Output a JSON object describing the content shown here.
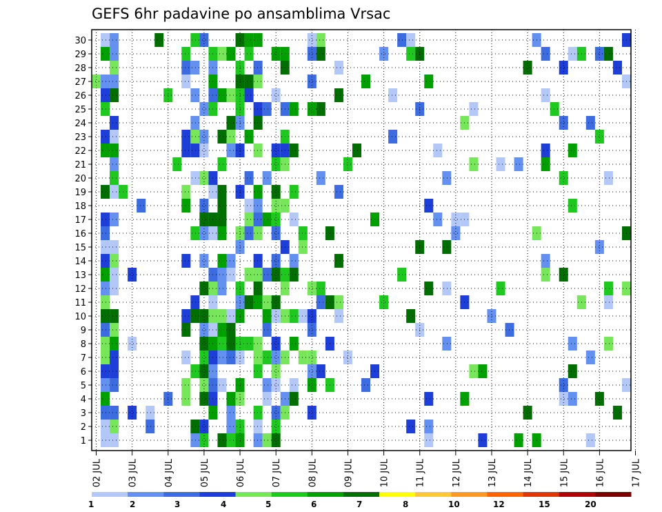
{
  "chart_data": {
    "type": "heatmap",
    "title": "GEFS 6hr padavine po ansamblima Vrsac",
    "x_tick_labels": [
      "02 JUL",
      "03 JUL",
      "04 JUL",
      "05 JUL",
      "06 JUL",
      "07 JUL",
      "08 JUL",
      "09 JUL",
      "10 JUL",
      "11 JUL",
      "12 JUL",
      "13 JUL",
      "14 JUL",
      "15 JUL",
      "16 JUL",
      "17 JUL"
    ],
    "y_tick_labels": [
      "1",
      "2",
      "3",
      "4",
      "5",
      "6",
      "7",
      "8",
      "9",
      "10",
      "11",
      "12",
      "13",
      "14",
      "15",
      "16",
      "17",
      "18",
      "19",
      "20",
      "21",
      "22",
      "23",
      "24",
      "25",
      "26",
      "27",
      "28",
      "29",
      "30"
    ],
    "x_steps_per_day": 4,
    "n_steps": 60,
    "n_members": 30,
    "grid": "dotted",
    "colorbar_labels": [
      "1",
      "2",
      "3",
      "4",
      "5",
      "6",
      "7",
      "8",
      "10",
      "12",
      "15",
      "20"
    ],
    "colorbar_colors": [
      "#b4c8f8",
      "#6490f0",
      "#3c6ce0",
      "#1e3ed8",
      "#78e65a",
      "#1ec81e",
      "#00a000",
      "#006e00",
      "#ffff00",
      "#ffc83c",
      "#ff9628",
      "#ff6400",
      "#e63200",
      "#b40000",
      "#780000"
    ],
    "cells": [
      [
        0,
        1,
        1
      ],
      [
        1,
        1,
        1
      ],
      [
        2,
        1,
        1
      ],
      [
        2,
        2,
        4
      ],
      [
        3,
        1,
        2
      ],
      [
        4,
        1,
        1
      ],
      [
        5,
        1,
        3
      ],
      [
        6,
        1,
        2
      ],
      [
        7,
        1,
        2
      ],
      [
        8,
        2,
        4
      ],
      [
        9,
        1,
        2
      ],
      [
        10,
        2,
        2
      ],
      [
        11,
        2,
        4
      ],
      [
        12,
        2,
        4
      ],
      [
        13,
        2,
        4
      ],
      [
        14,
        2,
        4
      ],
      [
        15,
        2,
        4
      ],
      [
        16,
        1,
        1
      ],
      [
        17,
        1,
        2
      ],
      [
        18,
        2,
        6
      ],
      [
        19,
        2,
        5
      ],
      [
        20,
        2,
        2
      ],
      [
        21,
        1,
        1
      ],
      [
        22,
        1,
        1
      ],
      [
        23,
        2,
        6
      ],
      [
        24,
        2,
        6
      ],
      [
        25,
        2,
        6
      ],
      [
        26,
        2,
        6
      ],
      [
        27,
        2,
        4
      ],
      [
        28,
        1,
        2
      ],
      [
        29,
        2,
        2
      ],
      [
        0,
        1,
        1
      ],
      [
        1,
        1,
        2
      ],
      [
        2,
        1,
        1
      ],
      [
        3,
        1,
        1
      ],
      [
        4,
        1,
        1
      ],
      [
        5,
        1,
        3
      ],
      [
        6,
        1,
        1
      ],
      [
        7,
        1,
        2
      ],
      [
        8,
        1,
        2
      ],
      [
        9,
        1,
        2
      ],
      [
        10,
        1,
        2
      ],
      [
        11,
        1,
        4
      ],
      [
        12,
        1,
        2
      ],
      [
        13,
        1,
        2
      ],
      [
        14,
        1,
        2
      ],
      [
        15,
        1,
        2
      ],
      [
        16,
        2,
        5
      ],
      [
        17,
        2,
        6
      ],
      [
        18,
        2,
        6
      ],
      [
        19,
        2,
        6
      ],
      [
        20,
        2,
        6
      ],
      [
        21,
        2,
        5
      ],
      [
        22,
        2,
        5
      ],
      [
        23,
        2,
        5
      ],
      [
        24,
        1,
        1
      ],
      [
        25,
        2,
        6
      ],
      [
        26,
        2,
        6
      ],
      [
        27,
        2,
        6
      ],
      [
        28,
        2,
        6
      ],
      [
        29,
        2,
        5
      ],
      [
        19,
        1,
        1
      ]
    ]
  }
}
